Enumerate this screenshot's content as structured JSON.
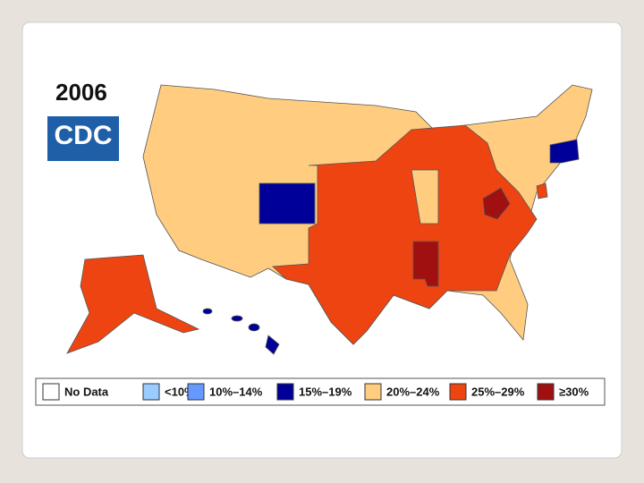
{
  "header": {
    "year": "2006",
    "logo": "CDC"
  },
  "legend": [
    {
      "label": "No Data",
      "color": "#ffffff"
    },
    {
      "label": "<10%",
      "color": "#99ccff"
    },
    {
      "label": "10%–14%",
      "color": "#6699ff"
    },
    {
      "label": "15%–19%",
      "color": "#000099"
    },
    {
      "label": "20%–24%",
      "color": "#ffcc80"
    },
    {
      "label": "25%–29%",
      "color": "#ee4411"
    },
    {
      "label": "≥30%",
      "color": "#a01010"
    }
  ]
}
